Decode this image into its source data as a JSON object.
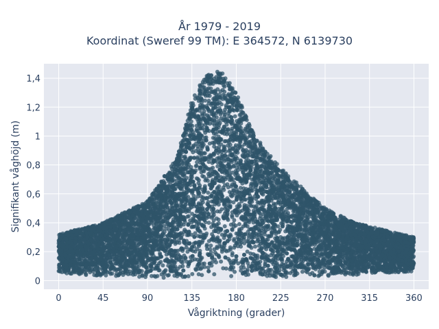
{
  "chart_data": {
    "type": "scatter",
    "title_lines": [
      "År 1979 - 2019",
      "Koordinat (Sweref 99 TM): E 364572, N 6139730"
    ],
    "xlabel": "Vågriktning (grader)",
    "ylabel": "Signifikant våghöjd (m)",
    "xlim": [
      -15,
      375
    ],
    "ylim": [
      -0.06,
      1.5
    ],
    "x_ticks": [
      0,
      45,
      90,
      135,
      180,
      225,
      270,
      315,
      360
    ],
    "x_tick_labels": [
      "0",
      "45",
      "90",
      "135",
      "180",
      "225",
      "270",
      "315",
      "360"
    ],
    "y_ticks": [
      0,
      0.2,
      0.4,
      0.6,
      0.8,
      1.0,
      1.2,
      1.4
    ],
    "y_tick_labels": [
      "0",
      "0,2",
      "0,4",
      "0,6",
      "0,8",
      "1",
      "1,2",
      "1,4"
    ],
    "grid": true,
    "legend": false,
    "marker_color": "#2f5469",
    "background_color": "#e5e8f0",
    "envelope": {
      "x": [
        0,
        45,
        90,
        120,
        135,
        150,
        165,
        180,
        195,
        210,
        225,
        250,
        270,
        300,
        330,
        360
      ],
      "y_min": [
        0.05,
        0.03,
        0.02,
        0.02,
        0.02,
        0.02,
        0.02,
        0.02,
        0.02,
        0.02,
        0.02,
        0.03,
        0.03,
        0.04,
        0.05,
        0.06
      ],
      "y_max": [
        0.32,
        0.4,
        0.55,
        0.85,
        1.25,
        1.44,
        1.45,
        1.3,
        1.05,
        0.9,
        0.78,
        0.62,
        0.5,
        0.4,
        0.35,
        0.3
      ]
    }
  }
}
